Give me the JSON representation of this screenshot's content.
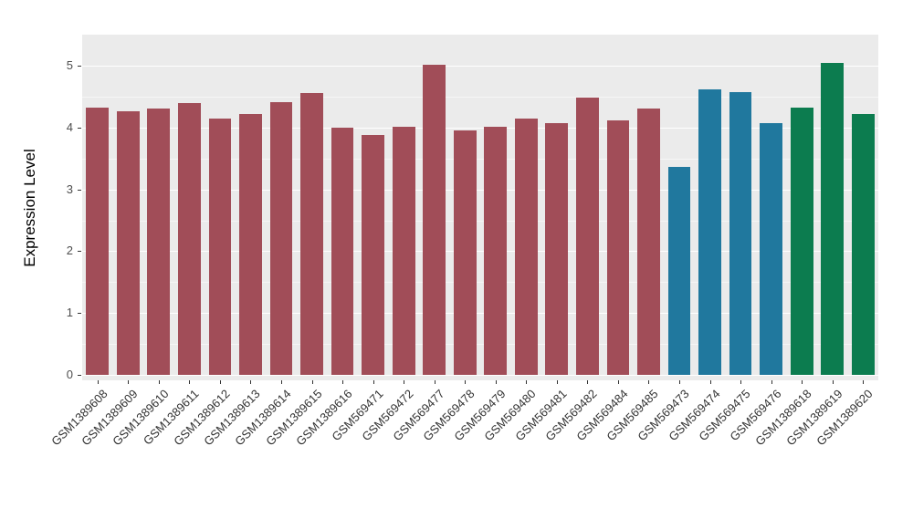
{
  "figure": {
    "background": "#FFFFFF",
    "panel_background": "#EBEBEB",
    "gridline_color": "#FFFFFF",
    "axis_text_color": "#4D4D4D",
    "x_label_color": "#333333",
    "axis_title_color": "#000000",
    "tick_color": "#333333"
  },
  "chart_data": {
    "type": "bar",
    "title": "",
    "xlabel": "",
    "ylabel": "Expression Level",
    "ylim": [
      0,
      5.5
    ],
    "yticks": [
      0,
      1,
      2,
      3,
      4,
      5
    ],
    "grid": "major+minor horizontal, white on gray panel",
    "legend": "none",
    "categories": [
      "GSM1389608",
      "GSM1389609",
      "GSM1389610",
      "GSM1389611",
      "GSM1389612",
      "GSM1389613",
      "GSM1389614",
      "GSM1389615",
      "GSM1389616",
      "GSM569471",
      "GSM569472",
      "GSM569477",
      "GSM569478",
      "GSM569479",
      "GSM569480",
      "GSM569481",
      "GSM569482",
      "GSM569484",
      "GSM569485",
      "GSM569473",
      "GSM569474",
      "GSM569475",
      "GSM569476",
      "GSM1389618",
      "GSM1389619",
      "GSM1389620"
    ],
    "values": [
      4.32,
      4.26,
      4.3,
      4.39,
      4.14,
      4.22,
      4.41,
      4.56,
      3.99,
      3.88,
      4.01,
      5.01,
      3.95,
      4.01,
      4.14,
      4.07,
      4.48,
      4.11,
      4.3,
      3.37,
      4.61,
      4.57,
      4.07,
      4.32,
      5.04,
      4.22
    ],
    "palette": {
      "group1_red": "#A14D58",
      "group2_teal": "#20789E",
      "group3_green": "#0C7C4F"
    },
    "bar_colors": [
      "#A14D58",
      "#A14D58",
      "#A14D58",
      "#A14D58",
      "#A14D58",
      "#A14D58",
      "#A14D58",
      "#A14D58",
      "#A14D58",
      "#A14D58",
      "#A14D58",
      "#A14D58",
      "#A14D58",
      "#A14D58",
      "#A14D58",
      "#A14D58",
      "#A14D58",
      "#A14D58",
      "#A14D58",
      "#20789E",
      "#20789E",
      "#20789E",
      "#20789E",
      "#0C7C4F",
      "#0C7C4F",
      "#0C7C4F"
    ]
  }
}
